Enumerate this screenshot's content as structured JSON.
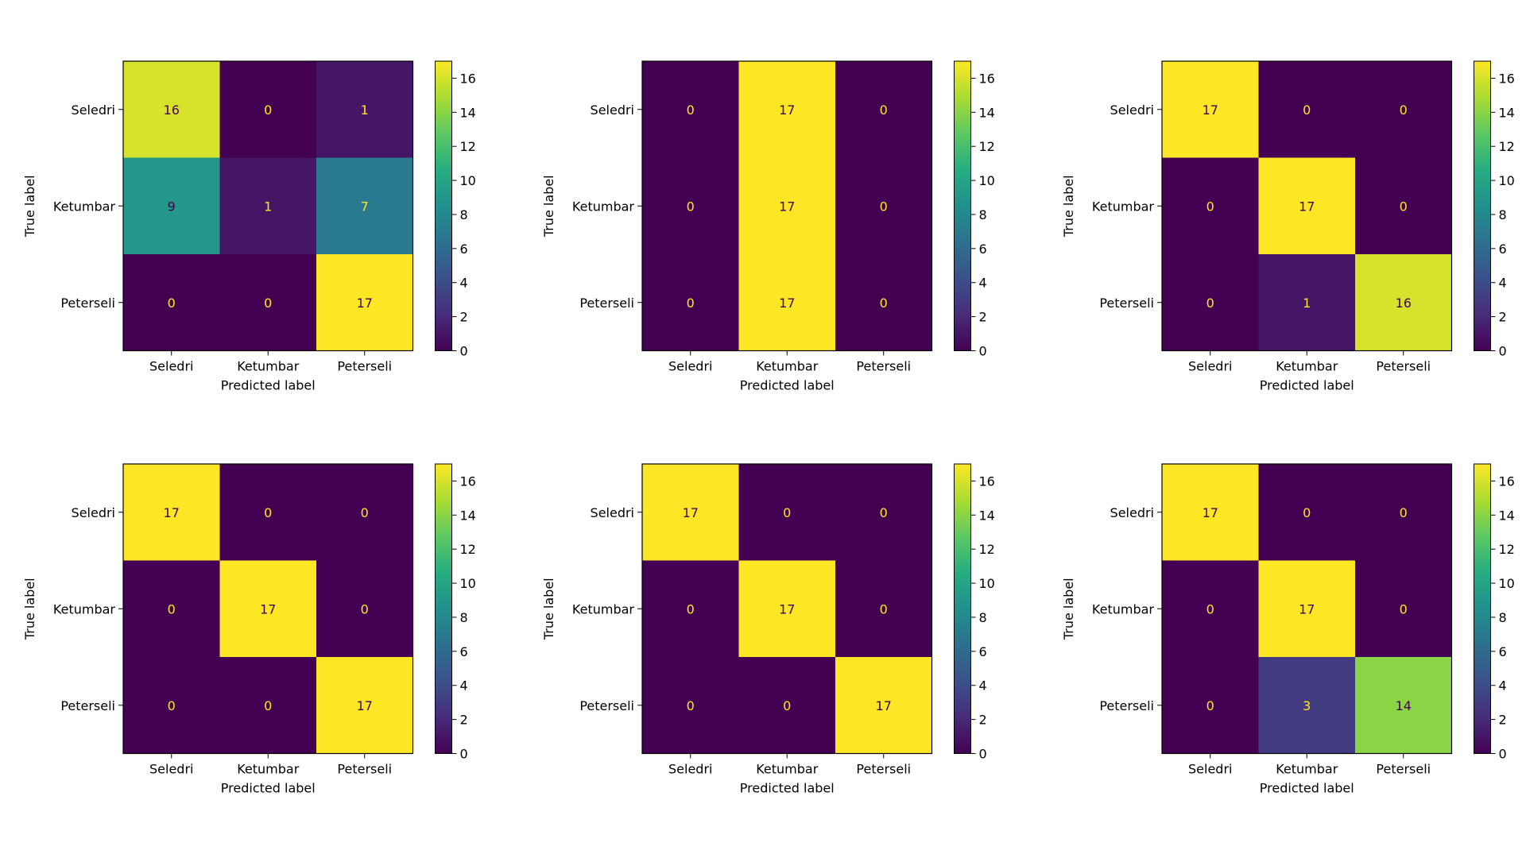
{
  "chart_data": [
    {
      "type": "heatmap",
      "rows": [
        "Seledri",
        "Ketumbar",
        "Peterseli"
      ],
      "columns": [
        "Seledri",
        "Ketumbar",
        "Peterseli"
      ],
      "values": [
        [
          16,
          0,
          1
        ],
        [
          9,
          1,
          7
        ],
        [
          0,
          0,
          17
        ]
      ],
      "xlabel": "Predicted label",
      "ylabel": "True label",
      "colorbar": {
        "min": 0,
        "max": 17,
        "ticks": [
          0,
          2,
          4,
          6,
          8,
          10,
          12,
          14,
          16
        ]
      },
      "colormap": "viridis"
    },
    {
      "type": "heatmap",
      "rows": [
        "Seledri",
        "Ketumbar",
        "Peterseli"
      ],
      "columns": [
        "Seledri",
        "Ketumbar",
        "Peterseli"
      ],
      "values": [
        [
          0,
          17,
          0
        ],
        [
          0,
          17,
          0
        ],
        [
          0,
          17,
          0
        ]
      ],
      "xlabel": "Predicted label",
      "ylabel": "True label",
      "colorbar": {
        "min": 0,
        "max": 17,
        "ticks": [
          0,
          2,
          4,
          6,
          8,
          10,
          12,
          14,
          16
        ]
      },
      "colormap": "viridis"
    },
    {
      "type": "heatmap",
      "rows": [
        "Seledri",
        "Ketumbar",
        "Peterseli"
      ],
      "columns": [
        "Seledri",
        "Ketumbar",
        "Peterseli"
      ],
      "values": [
        [
          17,
          0,
          0
        ],
        [
          0,
          17,
          0
        ],
        [
          0,
          1,
          16
        ]
      ],
      "xlabel": "Predicted label",
      "ylabel": "True label",
      "colorbar": {
        "min": 0,
        "max": 17,
        "ticks": [
          0,
          2,
          4,
          6,
          8,
          10,
          12,
          14,
          16
        ]
      },
      "colormap": "viridis"
    },
    {
      "type": "heatmap",
      "rows": [
        "Seledri",
        "Ketumbar",
        "Peterseli"
      ],
      "columns": [
        "Seledri",
        "Ketumbar",
        "Peterseli"
      ],
      "values": [
        [
          17,
          0,
          0
        ],
        [
          0,
          17,
          0
        ],
        [
          0,
          0,
          17
        ]
      ],
      "xlabel": "Predicted label",
      "ylabel": "True label",
      "colorbar": {
        "min": 0,
        "max": 17,
        "ticks": [
          0,
          2,
          4,
          6,
          8,
          10,
          12,
          14,
          16
        ]
      },
      "colormap": "viridis"
    },
    {
      "type": "heatmap",
      "rows": [
        "Seledri",
        "Ketumbar",
        "Peterseli"
      ],
      "columns": [
        "Seledri",
        "Ketumbar",
        "Peterseli"
      ],
      "values": [
        [
          17,
          0,
          0
        ],
        [
          0,
          17,
          0
        ],
        [
          0,
          0,
          17
        ]
      ],
      "xlabel": "Predicted label",
      "ylabel": "True label",
      "colorbar": {
        "min": 0,
        "max": 17,
        "ticks": [
          0,
          2,
          4,
          6,
          8,
          10,
          12,
          14,
          16
        ]
      },
      "colormap": "viridis"
    },
    {
      "type": "heatmap",
      "rows": [
        "Seledri",
        "Ketumbar",
        "Peterseli"
      ],
      "columns": [
        "Seledri",
        "Ketumbar",
        "Peterseli"
      ],
      "values": [
        [
          17,
          0,
          0
        ],
        [
          0,
          17,
          0
        ],
        [
          0,
          3,
          14
        ]
      ],
      "xlabel": "Predicted label",
      "ylabel": "True label",
      "colorbar": {
        "min": 0,
        "max": 17,
        "ticks": [
          0,
          2,
          4,
          6,
          8,
          10,
          12,
          14,
          16
        ]
      },
      "colormap": "viridis"
    }
  ]
}
